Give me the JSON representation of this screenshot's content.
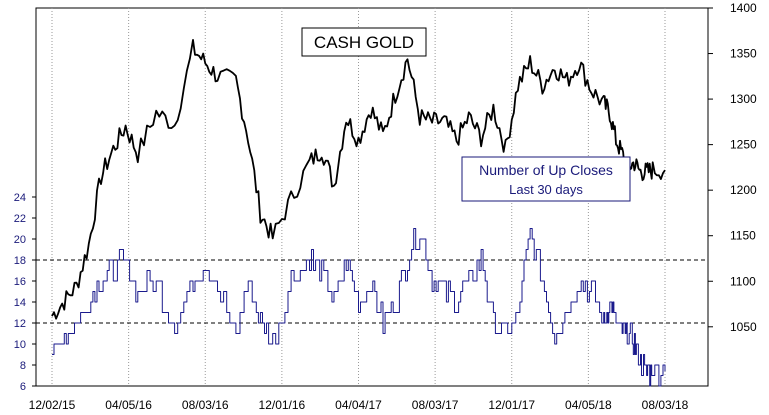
{
  "chart_data": {
    "type": "line",
    "title": "CASH GOLD",
    "subtitle_lines": [
      "Number of Up Closes",
      "Last 30 days"
    ],
    "x_tick_labels": [
      "12/02/15",
      "04/05/16",
      "08/03/16",
      "12/01/16",
      "04/04/17",
      "08/03/17",
      "12/01/17",
      "04/05/18",
      "08/03/18"
    ],
    "right_axis": {
      "ticks": [
        1050,
        1100,
        1150,
        1200,
        1250,
        1300,
        1350,
        1400
      ],
      "range": [
        985,
        1400
      ]
    },
    "left_axis": {
      "ticks": [
        6,
        8,
        10,
        12,
        14,
        16,
        18,
        20,
        22,
        24
      ],
      "range": [
        6,
        42
      ]
    },
    "reference_lines": [
      18,
      12
    ],
    "grid": true,
    "colors": {
      "gold": "#000000",
      "up_closes": "#1a1a8c",
      "subtitle": "#1a1a7a"
    },
    "series": [
      {
        "axis": "right",
        "color": "#000000",
        "t": [
          0,
          0.02,
          0.04,
          0.06,
          0.08,
          0.1,
          0.12,
          0.14,
          0.17,
          0.2,
          0.23,
          0.25,
          0.27,
          0.3,
          0.32,
          0.34,
          0.36,
          0.39,
          0.42,
          0.44,
          0.46,
          0.48,
          0.5,
          0.52,
          0.54,
          0.56,
          0.58,
          0.6,
          0.62,
          0.64,
          0.66,
          0.68,
          0.7,
          0.72,
          0.74,
          0.76,
          0.78,
          0.8,
          0.82,
          0.84,
          0.86,
          0.88,
          0.9,
          0.91,
          0.92,
          0.93,
          0.94,
          0.95,
          0.96,
          0.97,
          0.98,
          1.0
        ],
        "values": [
          1062,
          1078,
          1095,
          1140,
          1215,
          1245,
          1270,
          1240,
          1285,
          1272,
          1355,
          1340,
          1325,
          1320,
          1258,
          1175,
          1148,
          1190,
          1230,
          1245,
          1205,
          1280,
          1255,
          1290,
          1260,
          1305,
          1345,
          1280,
          1275,
          1275,
          1255,
          1280,
          1258,
          1290,
          1245,
          1315,
          1340,
          1315,
          1335,
          1320,
          1340,
          1310,
          1295,
          1285,
          1255,
          1240,
          1225,
          1230,
          1220,
          1220,
          1222,
          1222
        ]
      },
      {
        "axis": "left",
        "color": "#1a1a8c",
        "t": [
          0,
          0.02,
          0.04,
          0.06,
          0.08,
          0.1,
          0.12,
          0.14,
          0.17,
          0.2,
          0.23,
          0.25,
          0.27,
          0.3,
          0.32,
          0.34,
          0.36,
          0.39,
          0.42,
          0.44,
          0.46,
          0.48,
          0.5,
          0.52,
          0.54,
          0.56,
          0.58,
          0.6,
          0.62,
          0.64,
          0.66,
          0.68,
          0.7,
          0.72,
          0.74,
          0.76,
          0.78,
          0.8,
          0.82,
          0.84,
          0.86,
          0.88,
          0.9,
          0.91,
          0.92,
          0.93,
          0.94,
          0.95,
          0.96,
          0.97,
          0.98,
          1.0
        ],
        "values": [
          9,
          11,
          12,
          14,
          16,
          17,
          18,
          15,
          16,
          12,
          16,
          18,
          15,
          11,
          16,
          12,
          10,
          16,
          18,
          17,
          14,
          18,
          14,
          16,
          12,
          14,
          18,
          21,
          16,
          15,
          14,
          16,
          18,
          12,
          11,
          13,
          21,
          16,
          11,
          13,
          16,
          15,
          12,
          14,
          12,
          11,
          11,
          10,
          8,
          7.5,
          7.4,
          7.4
        ]
      }
    ]
  }
}
